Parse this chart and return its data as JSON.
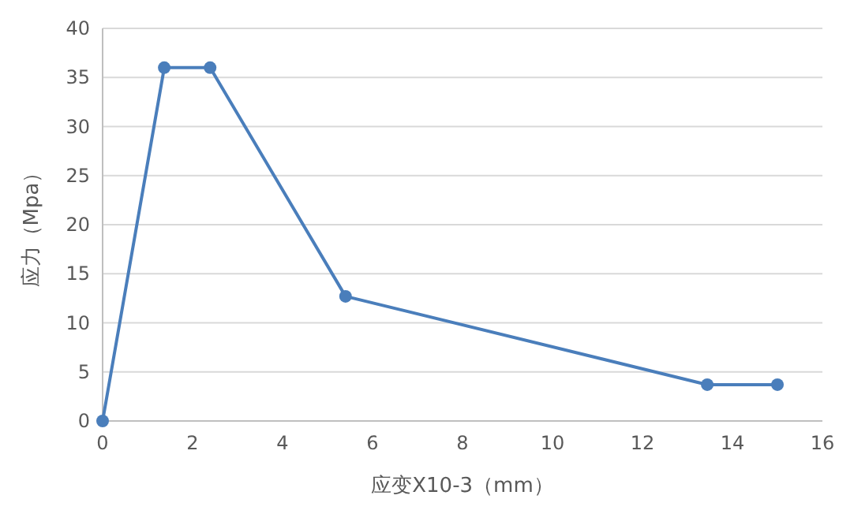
{
  "chart_data": {
    "type": "line",
    "xlabel": "应变X10-3（mm）",
    "ylabel": "应力（Mpa）",
    "x": [
      0,
      1.37,
      2.39,
      5.4,
      13.44,
      15
    ],
    "series": [
      {
        "color": "#4a7ebb",
        "values": [
          0,
          36,
          36,
          12.7,
          3.7,
          3.7
        ]
      }
    ],
    "xlim": [
      0,
      16
    ],
    "xticks": [
      0,
      2,
      4,
      6,
      8,
      10,
      12,
      14,
      16
    ],
    "ylim": [
      0,
      40
    ],
    "yticks": [
      0,
      5,
      10,
      15,
      20,
      25,
      30,
      35,
      40
    ],
    "grid": "y",
    "marker": "circle"
  }
}
